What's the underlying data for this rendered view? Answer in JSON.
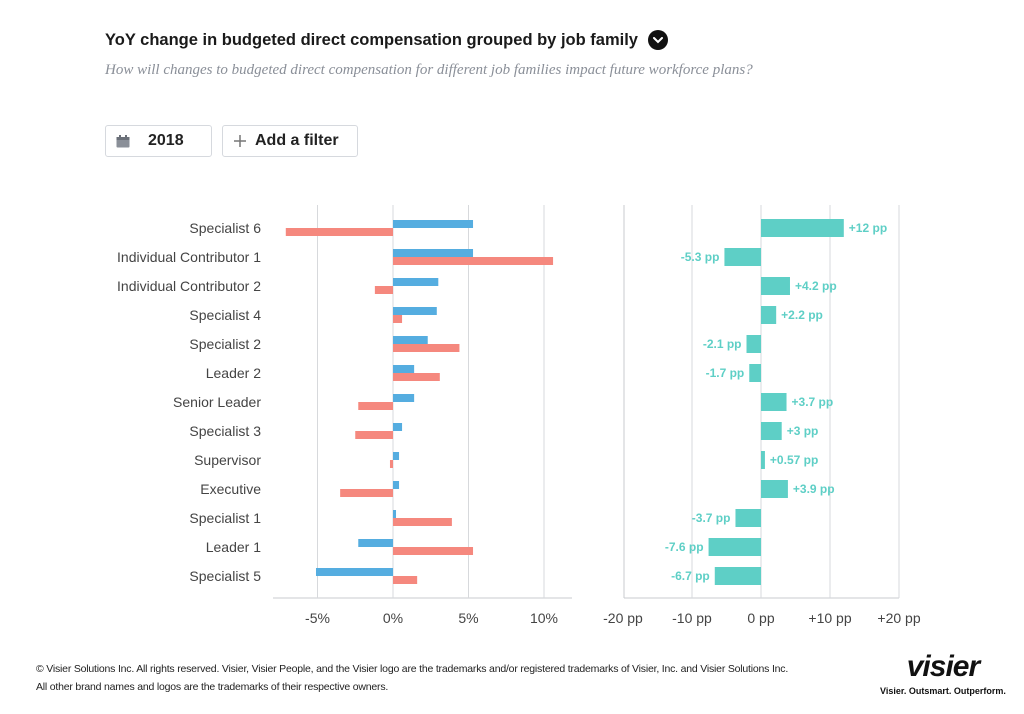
{
  "header": {
    "title": "YoY change in budgeted direct compensation grouped by job family",
    "subtitle": "How will changes to budgeted direct compensation for different job families impact future workforce plans?"
  },
  "controls": {
    "year_label": "2018",
    "filter_label": "Add a filter"
  },
  "colors": {
    "blue": "#55ade0",
    "salmon": "#f5887e",
    "teal": "#5ecfc6",
    "grid": "#d7d9dc"
  },
  "chart_data": [
    {
      "type": "bar",
      "orientation": "horizontal",
      "categories": [
        "Specialist 6",
        "Individual Contributor 1",
        "Individual Contributor 2",
        "Specialist 4",
        "Specialist 2",
        "Leader 2",
        "Senior Leader",
        "Specialist 3",
        "Supervisor",
        "Executive",
        "Specialist 1",
        "Leader 1",
        "Specialist 5"
      ],
      "series": [
        {
          "name": "blue",
          "values": [
            5.3,
            5.3,
            3.0,
            2.9,
            2.3,
            1.4,
            1.4,
            0.6,
            0.4,
            0.4,
            0.2,
            -2.3,
            -5.1
          ]
        },
        {
          "name": "salmon",
          "values": [
            -7.1,
            10.6,
            -1.2,
            0.6,
            4.4,
            3.1,
            -2.3,
            -2.5,
            -0.2,
            -3.5,
            3.9,
            5.3,
            1.6
          ]
        }
      ],
      "xlim": [
        -8,
        12
      ],
      "xticks": [
        "-5%",
        "0%",
        "5%",
        "10%"
      ],
      "xtick_values": [
        -5,
        0,
        5,
        10
      ]
    },
    {
      "type": "bar",
      "orientation": "horizontal",
      "categories": [
        "Specialist 6",
        "Individual Contributor 1",
        "Individual Contributor 2",
        "Specialist 4",
        "Specialist 2",
        "Leader 2",
        "Senior Leader",
        "Specialist 3",
        "Supervisor",
        "Executive",
        "Specialist 1",
        "Leader 1",
        "Specialist 5"
      ],
      "values": [
        12,
        -5.3,
        4.2,
        2.2,
        -2.1,
        -1.7,
        3.7,
        3,
        0.57,
        3.9,
        -3.7,
        -7.6,
        -6.7
      ],
      "labels": [
        "+12 pp",
        "-5.3 pp",
        "+4.2 pp",
        "+2.2 pp",
        "-2.1 pp",
        "-1.7 pp",
        "+3.7 pp",
        "+3 pp",
        "+0.57 pp",
        "+3.9 pp",
        "-3.7 pp",
        "-7.6 pp",
        "-6.7 pp"
      ],
      "xlim": [
        -20,
        20
      ],
      "xticks": [
        "-20 pp",
        "-10 pp",
        "0 pp",
        "+10 pp",
        "+20 pp"
      ],
      "xtick_values": [
        -20,
        -10,
        0,
        10,
        20
      ]
    }
  ],
  "footer": {
    "line1": "© Visier Solutions Inc. All rights reserved. Visier, Visier People, and the Visier logo are the trademarks and/or registered trademarks of Visier, Inc. and Visier Solutions Inc.",
    "line2": "All other brand names and logos are the trademarks of their respective owners."
  },
  "logo": {
    "word": "visier",
    "tagline": "Visier. Outsmart. Outperform."
  }
}
